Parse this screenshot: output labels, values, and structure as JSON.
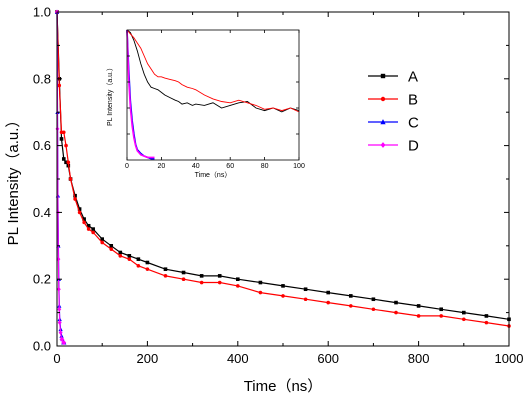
{
  "chart_data": [
    {
      "type": "line",
      "xlabel": "Time（ns）",
      "ylabel": "PL Intensity（a.u.）",
      "xlim": [
        0,
        1000
      ],
      "ylim": [
        0,
        1.0
      ],
      "xticks": [
        "0",
        "200",
        "400",
        "600",
        "800",
        "1000"
      ],
      "yticks": [
        "0.0",
        "0.2",
        "0.4",
        "0.6",
        "0.8",
        "1.0"
      ],
      "grid": false,
      "legend_position": "top-right",
      "series": [
        {
          "name": "A",
          "color": "#000000",
          "marker": "square",
          "x": [
            0,
            5,
            10,
            15,
            20,
            25,
            30,
            40,
            50,
            60,
            70,
            80,
            100,
            120,
            140,
            160,
            180,
            200,
            240,
            280,
            320,
            360,
            400,
            450,
            500,
            550,
            600,
            650,
            700,
            750,
            800,
            850,
            900,
            950,
            1000
          ],
          "y": [
            1.0,
            0.8,
            0.62,
            0.56,
            0.55,
            0.54,
            0.5,
            0.45,
            0.41,
            0.38,
            0.36,
            0.35,
            0.32,
            0.3,
            0.28,
            0.27,
            0.26,
            0.25,
            0.23,
            0.22,
            0.21,
            0.21,
            0.2,
            0.19,
            0.18,
            0.17,
            0.16,
            0.15,
            0.14,
            0.13,
            0.12,
            0.11,
            0.1,
            0.09,
            0.08
          ]
        },
        {
          "name": "B",
          "color": "#ff0000",
          "marker": "circle",
          "x": [
            0,
            5,
            10,
            15,
            20,
            25,
            30,
            40,
            50,
            60,
            70,
            80,
            100,
            120,
            140,
            160,
            180,
            200,
            240,
            280,
            320,
            360,
            400,
            450,
            500,
            550,
            600,
            650,
            700,
            750,
            800,
            850,
            900,
            950,
            1000
          ],
          "y": [
            1.0,
            0.78,
            0.64,
            0.64,
            0.6,
            0.55,
            0.5,
            0.44,
            0.4,
            0.37,
            0.35,
            0.34,
            0.31,
            0.29,
            0.27,
            0.26,
            0.24,
            0.23,
            0.21,
            0.2,
            0.19,
            0.19,
            0.18,
            0.16,
            0.15,
            0.14,
            0.13,
            0.12,
            0.11,
            0.1,
            0.09,
            0.09,
            0.08,
            0.07,
            0.06
          ]
        },
        {
          "name": "C",
          "color": "#0000ff",
          "marker": "triangle",
          "x": [
            0,
            1,
            2,
            3,
            4,
            5,
            6,
            8,
            10,
            12,
            14,
            16
          ],
          "y": [
            1.0,
            0.7,
            0.45,
            0.3,
            0.2,
            0.12,
            0.08,
            0.05,
            0.03,
            0.02,
            0.01,
            0.01
          ]
        },
        {
          "name": "D",
          "color": "#ff00ff",
          "marker": "diamond",
          "x": [
            0,
            1,
            2,
            3,
            4,
            5,
            6,
            8,
            10,
            12,
            14,
            16
          ],
          "y": [
            1.0,
            0.65,
            0.4,
            0.26,
            0.17,
            0.11,
            0.07,
            0.04,
            0.02,
            0.02,
            0.01,
            0.01
          ]
        }
      ]
    },
    {
      "type": "line",
      "role": "inset",
      "xlabel": "Time（ns）",
      "ylabel": "PL Intensity（a.u.）",
      "xlim": [
        0,
        100
      ],
      "ylim": [
        0,
        1.0
      ],
      "xticks": [
        "0",
        "20",
        "40",
        "60",
        "80",
        "100"
      ],
      "grid": false,
      "series": [
        {
          "name": "A",
          "color": "#000000",
          "x": [
            0,
            2,
            4,
            6,
            8,
            10,
            12,
            14,
            16,
            18,
            20,
            22,
            25,
            28,
            30,
            32,
            35,
            38,
            40,
            45,
            50,
            55,
            60,
            65,
            70,
            75,
            80,
            85,
            90,
            95,
            100
          ],
          "y": [
            1.0,
            0.98,
            0.92,
            0.84,
            0.74,
            0.66,
            0.6,
            0.56,
            0.55,
            0.54,
            0.52,
            0.5,
            0.48,
            0.46,
            0.45,
            0.43,
            0.44,
            0.42,
            0.43,
            0.42,
            0.44,
            0.4,
            0.42,
            0.44,
            0.45,
            0.4,
            0.38,
            0.4,
            0.37,
            0.4,
            0.38
          ]
        },
        {
          "name": "B",
          "color": "#ff0000",
          "x": [
            0,
            2,
            4,
            6,
            8,
            10,
            12,
            14,
            16,
            18,
            20,
            22,
            25,
            28,
            30,
            32,
            35,
            38,
            40,
            45,
            50,
            55,
            60,
            65,
            70,
            75,
            80,
            85,
            90,
            95,
            100
          ],
          "y": [
            1.0,
            0.97,
            0.94,
            0.9,
            0.86,
            0.8,
            0.74,
            0.7,
            0.66,
            0.64,
            0.64,
            0.63,
            0.62,
            0.61,
            0.6,
            0.58,
            0.56,
            0.55,
            0.54,
            0.5,
            0.47,
            0.45,
            0.44,
            0.46,
            0.44,
            0.42,
            0.39,
            0.4,
            0.38,
            0.4,
            0.37
          ]
        },
        {
          "name": "C",
          "color": "#0000ff",
          "x": [
            0,
            1,
            2,
            3,
            4,
            5,
            6,
            8,
            10,
            12,
            14,
            16
          ],
          "y": [
            1.0,
            0.7,
            0.45,
            0.3,
            0.2,
            0.12,
            0.08,
            0.05,
            0.03,
            0.02,
            0.01,
            0.01
          ]
        },
        {
          "name": "D",
          "color": "#ff00ff",
          "x": [
            0,
            1,
            2,
            3,
            4,
            5,
            6,
            8,
            10,
            12,
            14,
            16
          ],
          "y": [
            1.0,
            0.62,
            0.4,
            0.26,
            0.17,
            0.11,
            0.07,
            0.04,
            0.03,
            0.02,
            0.02,
            0.02
          ]
        }
      ]
    }
  ]
}
